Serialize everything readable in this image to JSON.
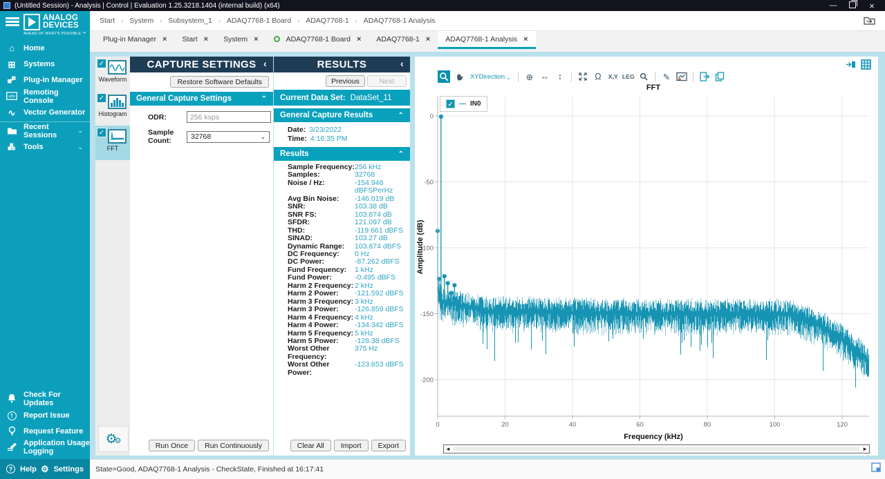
{
  "window": {
    "title": "(Untitled Session) - Analysis | Control | Evaluation 1.25.3218.1404 (internal build) (x64)"
  },
  "icons": {
    "minimize": "—",
    "close": "×",
    "check": "✓",
    "chevron_left": "‹",
    "chevron_up": "⌃",
    "chevron_down": "⌄",
    "breadcrumb_separator": "›",
    "crosshair": "⊕",
    "h_arrows": "↔",
    "v_arrows": "↕",
    "omega": "Ω",
    "pencil": "✎",
    "home": "⌂",
    "systems": "⊞",
    "wave": "∿",
    "gear": "⚙",
    "left_arrow": "◄",
    "right_arrow": "►"
  },
  "logo": {
    "name_line1": "ANALOG",
    "name_line2": "DEVICES",
    "tagline": "AHEAD OF WHAT'S POSSIBLE ™"
  },
  "sidebar": {
    "items": [
      {
        "label": "Home",
        "icon": "home"
      },
      {
        "label": "Systems",
        "icon": "systems"
      },
      {
        "label": "Plug-in Manager",
        "icon": "plugin"
      },
      {
        "label": "Remoting Console",
        "icon": "console"
      },
      {
        "label": "Vector Generator",
        "icon": "wave"
      },
      {
        "label": "Recent Sessions",
        "icon": "folder",
        "expandable": true,
        "divider_above": true
      },
      {
        "label": "Tools",
        "icon": "tools",
        "expandable": true
      }
    ],
    "bottom_items": [
      {
        "label": "Check For Updates",
        "icon": "bell"
      },
      {
        "label": "Report Issue",
        "icon": "issue"
      },
      {
        "label": "Request Feature",
        "icon": "bulb"
      },
      {
        "label": "Application Usage Logging",
        "icon": "log"
      }
    ],
    "footer": {
      "help": "Help",
      "settings": "Settings"
    }
  },
  "breadcrumb": {
    "items": [
      "Start",
      "System",
      "Subsystem_1",
      "ADAQ7768-1 Board",
      "ADAQ7768-1",
      "ADAQ7768-1 Analysis"
    ]
  },
  "tabs": [
    {
      "label": "Plug-in Manager"
    },
    {
      "label": "Start"
    },
    {
      "label": "System"
    },
    {
      "label": "ADAQ7768-1 Board",
      "dot": true
    },
    {
      "label": "ADAQ7768-1"
    },
    {
      "label": "ADAQ7768-1 Analysis",
      "active": true
    }
  ],
  "tool_strip": {
    "items": [
      {
        "label": "Waveform",
        "checked": true,
        "thumb": "waveform"
      },
      {
        "label": "Histogram",
        "checked": true,
        "thumb": "histogram"
      },
      {
        "label": "FFT",
        "checked": true,
        "thumb": "fft",
        "active": true
      }
    ]
  },
  "capture": {
    "title": "CAPTURE SETTINGS",
    "restore_button": "Restore Software Defaults",
    "section": "General Capture Settings",
    "odr_label": "ODR:",
    "odr_value": "256 ksps",
    "sample_count_label": "Sample Count:",
    "sample_count_value": "32768",
    "run_once": "Run Once",
    "run_continuously": "Run Continuously"
  },
  "results": {
    "title": "RESULTS",
    "previous": "Previous",
    "next": "Next",
    "current_label": "Current Data Set:",
    "current_value": "DataSet_11",
    "general_section": "General Capture Results",
    "date_label": "Date:",
    "date_value": "3/23/2022",
    "time_label": "Time:",
    "time_value": "4:16:35 PM",
    "results_section": "Results",
    "rows": [
      [
        "Sample Frequency:",
        "256 kHz"
      ],
      [
        "Samples:",
        "32768"
      ],
      [
        "Noise / Hz:",
        "-154.946 dBFSPerHz"
      ],
      [
        "Avg Bin Noise:",
        "-146.019 dB"
      ],
      [
        "SNR:",
        "103.38 dB"
      ],
      [
        "SNR FS:",
        "103.874 dB"
      ],
      [
        "SFDR:",
        "121.097 dB"
      ],
      [
        "THD:",
        "-119.661 dBFS"
      ],
      [
        "SINAD:",
        "103.27 dB"
      ],
      [
        "Dynamic Range:",
        "103.874 dBFS"
      ],
      [
        "DC Frequency:",
        "0 Hz"
      ],
      [
        "DC Power:",
        "-87.262 dBFS"
      ],
      [
        "Fund Frequency:",
        "1 kHz"
      ],
      [
        "Fund Power:",
        "-0.495 dBFS"
      ],
      [
        "Harm 2 Frequency:",
        "2 kHz"
      ],
      [
        "Harm 2 Power:",
        "-121.592 dBFS"
      ],
      [
        "Harm 3 Frequency:",
        "3 kHz"
      ],
      [
        "Harm 3 Power:",
        "-126.859 dBFS"
      ],
      [
        "Harm 4 Frequency:",
        "4 kHz"
      ],
      [
        "Harm 4 Power:",
        "-134.342 dBFS"
      ],
      [
        "Harm 5 Frequency:",
        "5 kHz"
      ],
      [
        "Harm 5 Power:",
        "-128.38 dBFS"
      ],
      [
        "Worst Other Frequency:",
        "375 Hz"
      ],
      [
        "Worst Other Power:",
        "-123.653 dBFS"
      ]
    ],
    "clear_all": "Clear All",
    "import": "Import",
    "export": "Export"
  },
  "chart": {
    "toolbar": {
      "xy_direction_label": "XYDirection",
      "xy_label": "X,Y",
      "leg_label": "LEG",
      "buttons": [
        {
          "name": "zoom-box-tool",
          "icon": "magnifier",
          "active": true
        },
        {
          "name": "pan-tool",
          "icon": "hand"
        },
        {
          "name": "xy-direction-select",
          "type": "dropdown",
          "labelKey": "xy_direction_label"
        },
        {
          "type": "sep"
        },
        {
          "name": "center-tool",
          "icon": "crosshair"
        },
        {
          "name": "horizontal-scale-tool",
          "icon": "h_arrows"
        },
        {
          "name": "vertical-scale-tool",
          "icon": "v_arrows"
        },
        {
          "type": "sep"
        },
        {
          "name": "fit-view-tool",
          "icon": "fit"
        },
        {
          "name": "undo-zoom-tool",
          "icon": "omega"
        },
        {
          "name": "xy-readout-toggle",
          "type": "text",
          "labelKey": "xy_label"
        },
        {
          "name": "legend-toggle",
          "type": "text",
          "labelKey": "leg_label"
        },
        {
          "name": "magnify-tool",
          "icon": "magnifier_sm"
        },
        {
          "type": "sep"
        },
        {
          "name": "annotate-tool",
          "icon": "pencil"
        },
        {
          "name": "chart-image-tool",
          "icon": "chart_image"
        },
        {
          "type": "sep"
        },
        {
          "name": "export-chart-button",
          "icon": "export_doc"
        },
        {
          "name": "copy-chart-button",
          "icon": "copy_doc"
        }
      ]
    },
    "legend_label": "IN0"
  },
  "chart_data": {
    "type": "line",
    "title": "FFT",
    "xlabel": "Frequency (kHz)",
    "ylabel": "Amplitude (dB)",
    "series": [
      {
        "name": "IN0",
        "color": "#1794B4",
        "color_light": "#8CC9D9"
      }
    ],
    "xlim": [
      0,
      128
    ],
    "ylim": [
      14,
      -228
    ],
    "xticks": [
      0,
      20,
      40,
      60,
      80,
      100,
      120
    ],
    "yticks": [
      0,
      -50,
      -100,
      -150,
      -200
    ],
    "grid": true,
    "legend_position": "top-left",
    "markers": [
      {
        "name": "DC",
        "freq_khz": 0,
        "db": -87.262
      },
      {
        "name": "Worst Other",
        "freq_khz": 0.375,
        "db": -123.653
      },
      {
        "name": "Fundamental",
        "freq_khz": 1,
        "db": -0.495
      },
      {
        "name": "Harm 2",
        "freq_khz": 2,
        "db": -121.592
      },
      {
        "name": "Harm 3",
        "freq_khz": 3,
        "db": -126.859
      },
      {
        "name": "Harm 4",
        "freq_khz": 4,
        "db": -134.342
      },
      {
        "name": "Harm 5",
        "freq_khz": 5,
        "db": -128.38
      }
    ],
    "noise_floor_points": [
      [
        0,
        -134
      ],
      [
        1.5,
        -140
      ],
      [
        15,
        -147
      ],
      [
        60,
        -149
      ],
      [
        104,
        -149
      ],
      [
        112,
        -156
      ],
      [
        120,
        -168
      ],
      [
        128,
        -186
      ]
    ],
    "noise_spread_up_db": 9,
    "noise_spread_down_db": 12,
    "deep_dip_db": 22,
    "deep_dip_probability": 0.05
  },
  "status_bar": {
    "text": "State=Good, ADAQ7768-1 Analysis - CheckState, Finished at 16:17:41"
  }
}
